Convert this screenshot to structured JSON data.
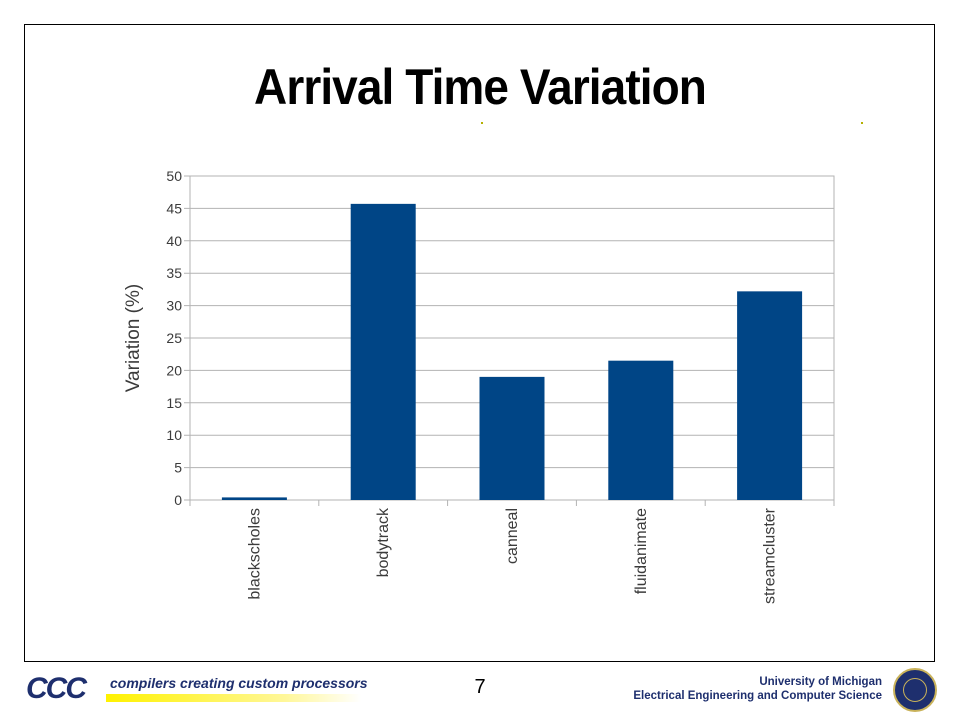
{
  "slide": {
    "title": "Arrival Time Variation",
    "page_number": "7"
  },
  "footer": {
    "logo_text": "CCC",
    "tagline": "compilers creating custom processors",
    "institution_line1": "University of Michigan",
    "institution_line2": "Electrical Engineering and Computer Science"
  },
  "colors": {
    "bar": "#004586",
    "grid": "#b3b3b3",
    "axis_text": "#3b3b3b",
    "brand": "#1e2f6e"
  },
  "icons": [
    "ccc-logo-icon",
    "university-seal-icon"
  ],
  "chart_data": {
    "type": "bar",
    "categories": [
      "blackscholes",
      "bodytrack",
      "canneal",
      "fluidanimate",
      "streamcluster"
    ],
    "values": [
      0.4,
      45.7,
      19.0,
      21.5,
      32.2
    ],
    "title": "",
    "xlabel": "",
    "ylabel": "Variation (%)",
    "ylim": [
      0,
      50
    ],
    "yticks": [
      0,
      5,
      10,
      15,
      20,
      25,
      30,
      35,
      40,
      45,
      50
    ],
    "grid": true,
    "legend": "none"
  }
}
